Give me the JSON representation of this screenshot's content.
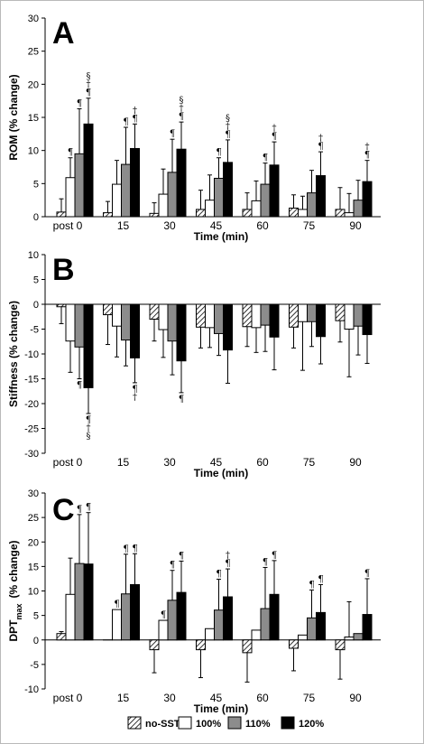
{
  "chart_data": [
    {
      "type": "bar",
      "panel_label": "A",
      "ylabel": "ROM  (% change)",
      "xlabel": "Time (min)",
      "categories": [
        "post 0",
        "15",
        "30",
        "45",
        "60",
        "75",
        "90"
      ],
      "ylim": [
        0,
        30
      ],
      "yticks": [
        0,
        5,
        10,
        15,
        20,
        25,
        30
      ],
      "series": [
        {
          "name": "no-SST",
          "values": [
            0.7,
            0.6,
            0.5,
            1.1,
            1.1,
            1.3,
            1.1
          ],
          "errors": [
            2.0,
            1.7,
            1.6,
            2.9,
            2.5,
            2.0,
            3.3
          ]
        },
        {
          "name": "100%",
          "values": [
            5.9,
            4.9,
            3.4,
            2.5,
            2.4,
            1.1,
            0.6
          ],
          "errors": [
            3.0,
            3.6,
            3.8,
            3.8,
            3.0,
            2.0,
            2.9
          ]
        },
        {
          "name": "110%",
          "values": [
            9.5,
            7.9,
            6.7,
            5.8,
            4.9,
            3.6,
            2.5
          ],
          "errors": [
            6.8,
            5.6,
            5.0,
            3.1,
            3.2,
            3.4,
            3.0
          ]
        },
        {
          "name": "120%",
          "values": [
            14.0,
            10.3,
            10.2,
            8.2,
            7.8,
            6.2,
            5.3
          ],
          "errors": [
            3.9,
            3.7,
            4.1,
            3.4,
            3.5,
            3.6,
            3.2
          ]
        }
      ],
      "annotations": [
        {
          "category": 0,
          "series": 1,
          "text": "¶"
        },
        {
          "category": 0,
          "series": 2,
          "text": "¶"
        },
        {
          "category": 0,
          "series": 3,
          "text": "§\n†\n¶"
        },
        {
          "category": 1,
          "series": 2,
          "text": "¶"
        },
        {
          "category": 1,
          "series": 3,
          "text": "†\n¶"
        },
        {
          "category": 2,
          "series": 2,
          "text": "¶"
        },
        {
          "category": 2,
          "series": 3,
          "text": "§\n†\n¶"
        },
        {
          "category": 3,
          "series": 2,
          "text": "¶"
        },
        {
          "category": 3,
          "series": 3,
          "text": "§\n†\n¶"
        },
        {
          "category": 4,
          "series": 2,
          "text": "¶"
        },
        {
          "category": 4,
          "series": 3,
          "text": "†\n¶"
        },
        {
          "category": 5,
          "series": 3,
          "text": "†\n¶"
        },
        {
          "category": 6,
          "series": 3,
          "text": "†\n¶"
        }
      ]
    },
    {
      "type": "bar",
      "panel_label": "B",
      "ylabel": "Stiffness   (% change)",
      "xlabel": "Time (min)",
      "categories": [
        "post 0",
        "15",
        "30",
        "45",
        "60",
        "75",
        "90"
      ],
      "ylim": [
        -30,
        10
      ],
      "yticks": [
        -30,
        -25,
        -20,
        -15,
        -10,
        -5,
        0,
        5,
        10
      ],
      "series": [
        {
          "name": "no-SST",
          "values": [
            -0.5,
            -2.1,
            -3.0,
            -4.6,
            -4.5,
            -4.6,
            -3.3
          ],
          "errors": [
            3.4,
            6.0,
            4.4,
            4.2,
            4.0,
            4.2,
            4.3
          ]
        },
        {
          "name": "100%",
          "values": [
            -7.4,
            -4.4,
            -5.1,
            -4.7,
            -4.7,
            -3.5,
            -5.0
          ],
          "errors": [
            6.3,
            6.2,
            5.6,
            4.0,
            5.0,
            9.8,
            9.6
          ]
        },
        {
          "name": "110%",
          "values": [
            -8.6,
            -7.2,
            -7.4,
            -5.9,
            -4.2,
            -3.5,
            -4.4
          ],
          "errors": [
            6.4,
            5.2,
            6.8,
            4.4,
            5.3,
            5.0,
            5.8
          ]
        },
        {
          "name": "120%",
          "values": [
            -16.8,
            -10.8,
            -11.4,
            -9.2,
            -6.6,
            -6.5,
            -6.1
          ],
          "errors": [
            5.2,
            5.0,
            6.4,
            6.7,
            6.6,
            5.5,
            5.8
          ]
        }
      ],
      "annotations": [
        {
          "category": 0,
          "series": 2,
          "text": "¶"
        },
        {
          "category": 0,
          "series": 3,
          "text": "¶\n†\n§"
        },
        {
          "category": 1,
          "series": 3,
          "text": "¶\n†"
        },
        {
          "category": 2,
          "series": 3,
          "text": "¶"
        }
      ]
    },
    {
      "type": "bar",
      "panel_label": "C",
      "ylabel": "DPT",
      "ylabel_subscript": "max",
      "ylabel_suffix": "(% change)",
      "xlabel": "Time (min)",
      "categories": [
        "post 0",
        "15",
        "30",
        "45",
        "60",
        "75",
        "90"
      ],
      "ylim": [
        -10,
        30
      ],
      "yticks": [
        -10,
        -5,
        0,
        5,
        10,
        15,
        20,
        25,
        30
      ],
      "series": [
        {
          "name": "no-SST",
          "values": [
            1.3,
            0.0,
            -2.0,
            -2.0,
            -2.6,
            -1.7,
            -2.0
          ],
          "errors": [
            0.4,
            0.0,
            4.7,
            5.7,
            6.0,
            4.6,
            6.0
          ]
        },
        {
          "name": "100%",
          "values": [
            9.3,
            6.2,
            4.0,
            2.3,
            2.0,
            1.0,
            0.6
          ],
          "errors": [
            7.4,
            0.0,
            0.0,
            0.0,
            0.0,
            0.0,
            7.2
          ]
        },
        {
          "name": "110%",
          "values": [
            15.6,
            9.4,
            8.1,
            6.1,
            6.4,
            4.5,
            1.3
          ],
          "errors": [
            10.0,
            8.1,
            6.1,
            6.3,
            8.4,
            5.7,
            0.0
          ]
        },
        {
          "name": "120%",
          "values": [
            15.5,
            11.3,
            9.7,
            8.8,
            9.3,
            5.6,
            5.2
          ],
          "errors": [
            10.5,
            6.3,
            6.4,
            5.7,
            6.9,
            5.7,
            7.3
          ]
        }
      ],
      "annotations": [
        {
          "category": 0,
          "series": 2,
          "text": "¶"
        },
        {
          "category": 0,
          "series": 3,
          "text": "¶"
        },
        {
          "category": 1,
          "series": 1,
          "text": "¶"
        },
        {
          "category": 1,
          "series": 2,
          "text": "¶"
        },
        {
          "category": 1,
          "series": 3,
          "text": "¶"
        },
        {
          "category": 2,
          "series": 1,
          "text": "¶"
        },
        {
          "category": 2,
          "series": 2,
          "text": "¶"
        },
        {
          "category": 2,
          "series": 3,
          "text": "¶"
        },
        {
          "category": 3,
          "series": 2,
          "text": "¶"
        },
        {
          "category": 3,
          "series": 3,
          "text": "†\n¶"
        },
        {
          "category": 4,
          "series": 2,
          "text": "¶"
        },
        {
          "category": 4,
          "series": 3,
          "text": "¶"
        },
        {
          "category": 5,
          "series": 2,
          "text": "¶"
        },
        {
          "category": 5,
          "series": 3,
          "text": "¶"
        },
        {
          "category": 6,
          "series": 3,
          "text": "¶"
        }
      ]
    }
  ],
  "legend": {
    "placement": "bottom",
    "items": [
      {
        "label": "no-SST",
        "fill": "hatch"
      },
      {
        "label": "100%",
        "fill": "#ffffff"
      },
      {
        "label": "110%",
        "fill": "#8c8c8c"
      },
      {
        "label": "120%",
        "fill": "#000000"
      }
    ]
  },
  "colors": {
    "no_sst": "hatch",
    "pct100": "#ffffff",
    "pct110": "#8c8c8c",
    "pct120": "#000000",
    "frame_border": "#b9b9b9"
  }
}
